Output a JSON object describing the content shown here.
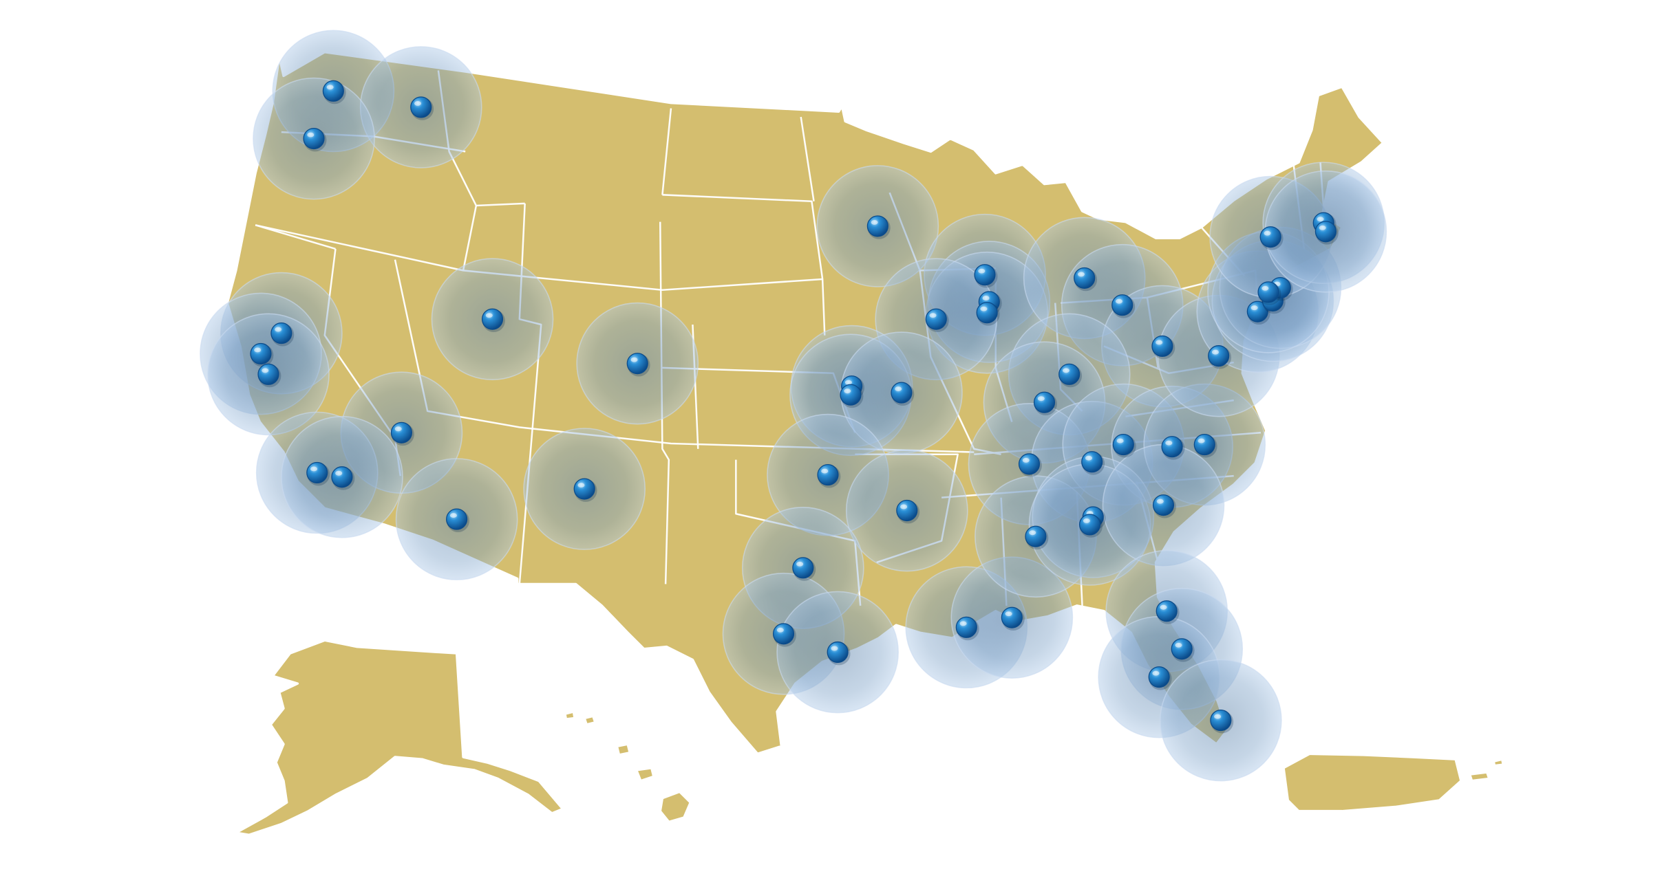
{
  "map": {
    "colors": {
      "land": "#D4BE6F",
      "state_border": "#FFFFFF",
      "coverage_fill": "#7FA9D8",
      "pin_light": "#6FC0F2",
      "pin_mid": "#1A7FC9",
      "pin_dark": "#0B4B8A",
      "background": "#FFFFFF"
    },
    "regions": [
      "contiguous-us",
      "alaska",
      "hawaii",
      "puerto-rico"
    ],
    "marker_icon": "blue-sphere-pin",
    "location_count": 62
  }
}
